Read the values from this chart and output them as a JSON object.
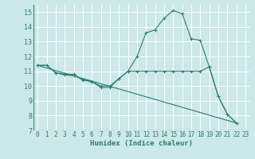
{
  "title": "",
  "xlabel": "Humidex (Indice chaleur)",
  "background_color": "#cce8e8",
  "line_color": "#2d7d6e",
  "grid_color": "#ffffff",
  "xlim": [
    -0.5,
    23.5
  ],
  "ylim": [
    7,
    15.5
  ],
  "yticks": [
    7,
    8,
    9,
    10,
    11,
    12,
    13,
    14,
    15
  ],
  "xticks": [
    0,
    1,
    2,
    3,
    4,
    5,
    6,
    7,
    8,
    9,
    10,
    11,
    12,
    13,
    14,
    15,
    16,
    17,
    18,
    19,
    20,
    21,
    22,
    23
  ],
  "series": [
    [
      0,
      11.4
    ],
    [
      1,
      11.4
    ],
    [
      2,
      10.9
    ],
    [
      3,
      10.8
    ],
    [
      4,
      10.8
    ],
    [
      5,
      10.4
    ],
    [
      6,
      10.3
    ],
    [
      7,
      10.0
    ],
    [
      8,
      10.0
    ],
    [
      9,
      10.5
    ],
    [
      10,
      11.0
    ],
    [
      11,
      12.0
    ],
    [
      12,
      13.6
    ],
    [
      13,
      13.8
    ],
    [
      14,
      14.6
    ],
    [
      15,
      15.1
    ],
    [
      16,
      14.9
    ],
    [
      17,
      13.2
    ],
    [
      18,
      13.1
    ],
    [
      19,
      11.3
    ],
    [
      20,
      9.3
    ],
    [
      21,
      8.1
    ],
    [
      22,
      7.5
    ]
  ],
  "series2": [
    [
      0,
      11.4
    ],
    [
      1,
      11.4
    ],
    [
      2,
      10.9
    ],
    [
      3,
      10.75
    ],
    [
      4,
      10.7
    ],
    [
      5,
      10.45
    ],
    [
      6,
      10.3
    ],
    [
      7,
      9.9
    ],
    [
      8,
      9.9
    ],
    [
      9,
      10.5
    ],
    [
      10,
      11.0
    ],
    [
      11,
      11.0
    ],
    [
      12,
      11.0
    ],
    [
      13,
      11.0
    ],
    [
      14,
      11.0
    ],
    [
      15,
      11.0
    ],
    [
      16,
      11.0
    ],
    [
      17,
      11.0
    ],
    [
      18,
      11.0
    ],
    [
      19,
      11.3
    ],
    [
      20,
      9.3
    ],
    [
      21,
      8.1
    ],
    [
      22,
      7.5
    ]
  ],
  "series3": [
    [
      0,
      11.4
    ],
    [
      22,
      7.5
    ]
  ]
}
